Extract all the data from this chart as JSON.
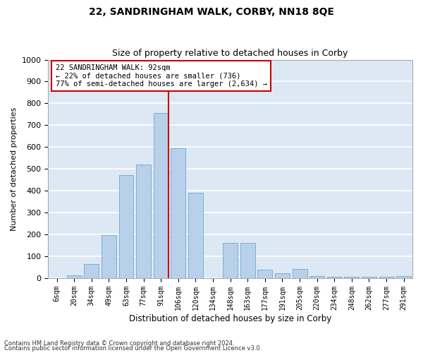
{
  "title": "22, SANDRINGHAM WALK, CORBY, NN18 8QE",
  "subtitle": "Size of property relative to detached houses in Corby",
  "xlabel": "Distribution of detached houses by size in Corby",
  "ylabel": "Number of detached properties",
  "categories": [
    "6sqm",
    "20sqm",
    "34sqm",
    "49sqm",
    "63sqm",
    "77sqm",
    "91sqm",
    "106sqm",
    "120sqm",
    "134sqm",
    "148sqm",
    "163sqm",
    "177sqm",
    "191sqm",
    "205sqm",
    "220sqm",
    "234sqm",
    "248sqm",
    "262sqm",
    "277sqm",
    "291sqm"
  ],
  "values": [
    0,
    12,
    63,
    198,
    472,
    520,
    755,
    595,
    390,
    0,
    160,
    160,
    40,
    22,
    42,
    10,
    5,
    5,
    5,
    5,
    8
  ],
  "bar_color": "#b8d0ea",
  "bar_edge_color": "#7aafd4",
  "background_color": "#dce9f5",
  "grid_color": "#ffffff",
  "annotation_box_text": "22 SANDRINGHAM WALK: 92sqm\n← 22% of detached houses are smaller (736)\n77% of semi-detached houses are larger (2,634) →",
  "annotation_box_color": "white",
  "annotation_box_edge_color": "#cc0000",
  "vline_color": "#cc0000",
  "ylim": [
    0,
    1000
  ],
  "yticks": [
    0,
    100,
    200,
    300,
    400,
    500,
    600,
    700,
    800,
    900,
    1000
  ],
  "footnote1": "Contains HM Land Registry data © Crown copyright and database right 2024.",
  "footnote2": "Contains public sector information licensed under the Open Government Licence v3.0."
}
